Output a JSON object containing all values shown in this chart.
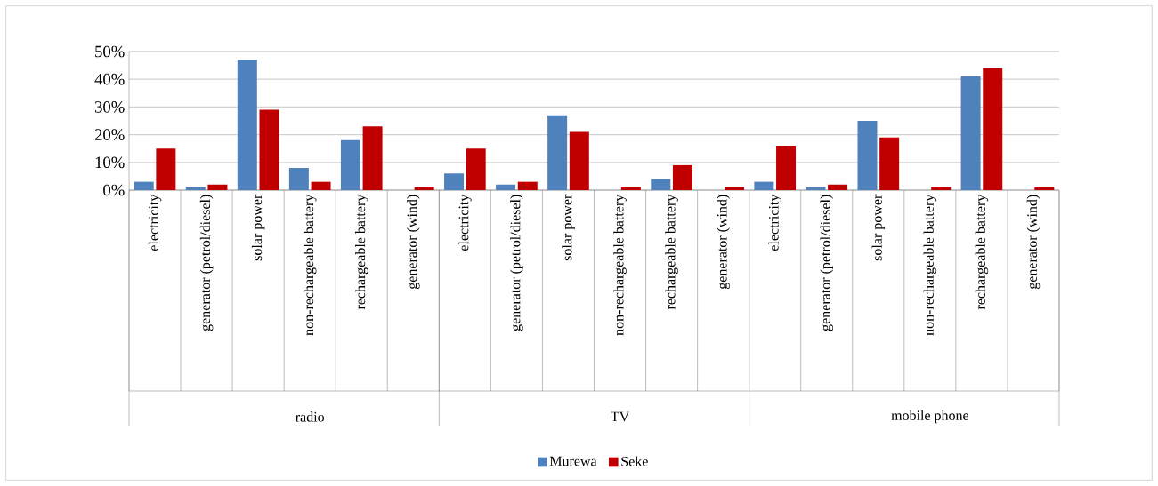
{
  "chart_data": {
    "type": "bar",
    "categories": [
      "electricity",
      "generator (petrol/diesel)",
      "solar power",
      "non-rechargeable battery",
      "rechargeable battery",
      "generator (wind)",
      "electricity",
      "generator (petrol/diesel)",
      "solar power",
      "non-rechargeable battery",
      "rechargeable battery",
      "generator (wind)",
      "electricity",
      "generator (petrol/diesel)",
      "solar power",
      "non-rechargeable battery",
      "rechargeable battery",
      "generator (wind)"
    ],
    "series": [
      {
        "name": "Murewa",
        "color": "#4f81bd",
        "values": [
          3,
          1,
          47,
          8,
          18,
          0,
          6,
          2,
          27,
          0,
          4,
          0,
          3,
          1,
          25,
          0,
          41,
          0
        ]
      },
      {
        "name": "Seke",
        "color": "#c00000",
        "values": [
          15,
          2,
          29,
          3,
          23,
          1,
          15,
          3,
          21,
          1,
          9,
          1,
          16,
          2,
          19,
          1,
          44,
          1
        ]
      }
    ],
    "annotations": [
      "radio",
      "TV",
      "mobile phone"
    ],
    "ylim": [
      0,
      50
    ],
    "yticks": [
      {
        "value": 0,
        "label": "0%"
      },
      {
        "value": 10,
        "label": "10%"
      },
      {
        "value": 20,
        "label": "20%"
      },
      {
        "value": 30,
        "label": "30%"
      },
      {
        "value": 40,
        "label": "40%"
      },
      {
        "value": 50,
        "label": "50%"
      }
    ],
    "grid": "y",
    "legend": "bottom"
  }
}
